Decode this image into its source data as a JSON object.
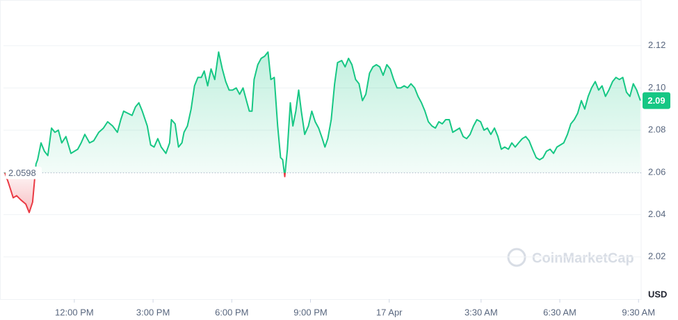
{
  "chart_data": {
    "type": "line",
    "x": [
      9.35,
      9.49,
      9.67,
      9.8,
      9.96,
      10.15,
      10.28,
      10.41,
      10.54,
      10.6,
      10.73,
      10.86,
      10.99,
      11.13,
      11.26,
      11.39,
      11.52,
      11.68,
      11.87,
      12.0,
      12.13,
      12.26,
      12.4,
      12.58,
      12.74,
      12.93,
      13.11,
      13.27,
      13.46,
      13.64,
      13.77,
      13.88,
      14.04,
      14.2,
      14.33,
      14.46,
      14.59,
      14.78,
      14.91,
      15.04,
      15.18,
      15.31,
      15.49,
      15.63,
      15.7,
      15.84,
      15.97,
      16.1,
      16.18,
      16.31,
      16.45,
      16.58,
      16.71,
      16.84,
      16.95,
      17.08,
      17.21,
      17.35,
      17.5,
      17.64,
      17.77,
      17.9,
      18.03,
      18.17,
      18.3,
      18.43,
      18.56,
      18.67,
      18.77,
      18.85,
      18.99,
      19.12,
      19.25,
      19.38,
      19.49,
      19.62,
      19.75,
      19.86,
      19.94,
      20.02,
      20.12,
      20.23,
      20.33,
      20.44,
      20.55,
      20.65,
      20.78,
      20.92,
      21.05,
      21.18,
      21.31,
      21.45,
      21.55,
      21.66,
      21.79,
      21.92,
      22.03,
      22.19,
      22.32,
      22.45,
      22.58,
      22.72,
      22.85,
      22.98,
      23.11,
      23.25,
      23.38,
      23.51,
      23.64,
      23.77,
      23.91,
      24.04,
      24.17,
      24.3,
      24.44,
      24.57,
      24.7,
      24.83,
      24.97,
      25.1,
      25.23,
      25.36,
      25.49,
      25.63,
      25.76,
      25.89,
      26.02,
      26.15,
      26.29,
      26.42,
      26.55,
      26.68,
      26.82,
      26.95,
      27.08,
      27.21,
      27.34,
      27.48,
      27.61,
      27.74,
      27.87,
      28.01,
      28.14,
      28.27,
      28.4,
      28.54,
      28.67,
      28.8,
      28.93,
      29.07,
      29.2,
      29.33,
      29.46,
      29.6,
      29.73,
      29.86,
      29.99,
      30.13,
      30.26,
      30.39,
      30.52,
      30.65,
      30.79,
      30.92,
      31.05,
      31.18,
      31.32,
      31.45,
      31.58,
      31.71,
      31.85,
      31.98,
      32.11,
      32.24,
      32.37,
      32.51,
      32.64,
      32.77,
      32.9,
      33.04,
      33.17,
      33.3,
      33.43,
      33.57
    ],
    "values": [
      2.06,
      2.055,
      2.048,
      2.049,
      2.047,
      2.045,
      2.041,
      2.046,
      2.064,
      2.066,
      2.074,
      2.07,
      2.068,
      2.081,
      2.079,
      2.08,
      2.074,
      2.077,
      2.069,
      2.07,
      2.071,
      2.074,
      2.078,
      2.074,
      2.075,
      2.079,
      2.081,
      2.084,
      2.082,
      2.079,
      2.085,
      2.089,
      2.088,
      2.087,
      2.091,
      2.093,
      2.089,
      2.082,
      2.073,
      2.072,
      2.076,
      2.072,
      2.069,
      2.074,
      2.085,
      2.083,
      2.072,
      2.074,
      2.079,
      2.082,
      2.09,
      2.101,
      2.105,
      2.105,
      2.108,
      2.101,
      2.109,
      2.104,
      2.117,
      2.109,
      2.103,
      2.099,
      2.099,
      2.1,
      2.097,
      2.1,
      2.094,
      2.089,
      2.089,
      2.104,
      2.111,
      2.114,
      2.115,
      2.117,
      2.104,
      2.105,
      2.082,
      2.067,
      2.066,
      2.058,
      2.071,
      2.093,
      2.082,
      2.089,
      2.099,
      2.089,
      2.078,
      2.082,
      2.089,
      2.084,
      2.081,
      2.076,
      2.072,
      2.076,
      2.085,
      2.102,
      2.112,
      2.113,
      2.11,
      2.114,
      2.111,
      2.104,
      2.102,
      2.094,
      2.097,
      2.107,
      2.11,
      2.111,
      2.11,
      2.106,
      2.111,
      2.109,
      2.104,
      2.1,
      2.1,
      2.101,
      2.1,
      2.102,
      2.1,
      2.096,
      2.093,
      2.089,
      2.084,
      2.082,
      2.081,
      2.084,
      2.083,
      2.085,
      2.085,
      2.079,
      2.08,
      2.081,
      2.077,
      2.076,
      2.078,
      2.082,
      2.085,
      2.084,
      2.08,
      2.081,
      2.078,
      2.081,
      2.077,
      2.071,
      2.072,
      2.071,
      2.074,
      2.072,
      2.074,
      2.076,
      2.077,
      2.075,
      2.071,
      2.067,
      2.066,
      2.067,
      2.07,
      2.071,
      2.069,
      2.072,
      2.073,
      2.074,
      2.078,
      2.083,
      2.085,
      2.088,
      2.094,
      2.09,
      2.096,
      2.1,
      2.103,
      2.099,
      2.101,
      2.096,
      2.099,
      2.103,
      2.105,
      2.104,
      2.105,
      2.098,
      2.096,
      2.102,
      2.099,
      2.094
    ],
    "color": "#16c784",
    "below_color": "#ea3943",
    "baseline": 2.0598,
    "current_price": 2.09,
    "xlim": [
      9.3,
      33.6
    ],
    "ylim": [
      2.0,
      2.14
    ],
    "xticks": [
      {
        "value": 12,
        "label": "12:00 PM"
      },
      {
        "value": 15,
        "label": "3:00 PM"
      },
      {
        "value": 18,
        "label": "6:00 PM"
      },
      {
        "value": 21,
        "label": "9:00 PM"
      },
      {
        "value": 24,
        "label": "17 Apr"
      },
      {
        "value": 27.5,
        "label": "3:30 AM"
      },
      {
        "value": 30.5,
        "label": "6:30 AM"
      },
      {
        "value": 33.5,
        "label": "9:30 AM"
      }
    ],
    "yticks": [
      2.02,
      2.04,
      2.06,
      2.08,
      {
        "value": 2.1,
        "label": "2.10"
      },
      2.12
    ],
    "y_unit": "USD",
    "watermark": "CoinMarketCap",
    "grid": true
  }
}
